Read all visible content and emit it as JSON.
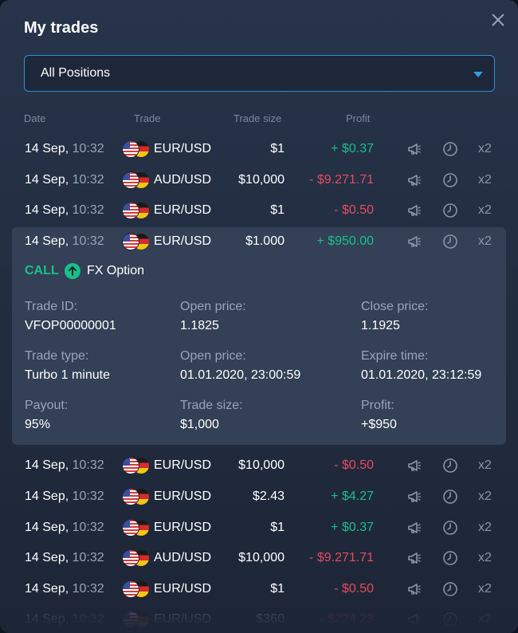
{
  "title": "My trades",
  "filter": {
    "selected": "All Positions"
  },
  "columns": {
    "date": "Date",
    "trade": "Trade",
    "size": "Trade size",
    "profit": "Profit"
  },
  "icons": {
    "close": "close-icon",
    "dropdown": "chevron-down-icon",
    "megaphone": "megaphone-icon",
    "clock": "clock-icon",
    "call": "arrow-up-circle-icon",
    "flag_us": "us-flag-icon",
    "flag_de": "de-flag-icon"
  },
  "colors": {
    "positive": "#19c08a",
    "negative": "#e84a5f",
    "accent": "#2f8fd6"
  },
  "rows": [
    {
      "date": "14 Sep,",
      "time": " 10:32",
      "pair": "EUR/USD",
      "size": "$1",
      "profit": "+ $0.37",
      "mult": "x2"
    },
    {
      "date": "14 Sep,",
      "time": " 10:32",
      "pair": "AUD/USD",
      "size": "$10,000",
      "profit": "- $9.271.71",
      "mult": "x2"
    },
    {
      "date": "14 Sep,",
      "time": " 10:32",
      "pair": "EUR/USD",
      "size": "$1",
      "profit": "- $0.50",
      "mult": "x2"
    },
    {
      "date": "14 Sep,",
      "time": " 10:32",
      "pair": "EUR/USD",
      "size": "$1.000",
      "profit": "+ $950.00",
      "mult": "x2"
    },
    {
      "date": "14 Sep,",
      "time": " 10:32",
      "pair": "EUR/USD",
      "size": "$10,000",
      "profit": "- $0.50",
      "mult": "x2"
    },
    {
      "date": "14 Sep,",
      "time": " 10:32",
      "pair": "EUR/USD",
      "size": "$2.43",
      "profit": "+ $4.27",
      "mult": "x2"
    },
    {
      "date": "14 Sep,",
      "time": " 10:32",
      "pair": "EUR/USD",
      "size": "$1",
      "profit": "+ $0.37",
      "mult": "x2"
    },
    {
      "date": "14 Sep,",
      "time": " 10:32",
      "pair": "AUD/USD",
      "size": "$10,000",
      "profit": "- $9.271.71",
      "mult": "x2"
    },
    {
      "date": "14 Sep,",
      "time": " 10:32",
      "pair": "EUR/USD",
      "size": "$1",
      "profit": "- $0.50",
      "mult": "x2"
    },
    {
      "date": "14 Sep,",
      "time": " 10:32",
      "pair": "EUR/USD",
      "size": "$360",
      "profit": "- $224.23",
      "mult": "x2"
    }
  ],
  "details": {
    "direction": "CALL",
    "option_name": "FX Option",
    "trade_id_label": "Trade ID:",
    "trade_id": "VFOP00000001",
    "open_price_label": "Open price:",
    "open_price": "1.1825",
    "close_price_label": "Close price:",
    "close_price": "1.1925",
    "trade_type_label": "Trade type:",
    "trade_type": "Turbo 1 minute",
    "open_time_label": "Open price:",
    "open_time": "01.01.2020, 23:00:59",
    "expire_label": "Expire time:",
    "expire": "01.01.2020, 23:12:59",
    "payout_label": "Payout:",
    "payout": "95%",
    "size_label": "Trade size:",
    "size": "$1,000",
    "profit_label": "Profit:",
    "profit": "+$950"
  }
}
